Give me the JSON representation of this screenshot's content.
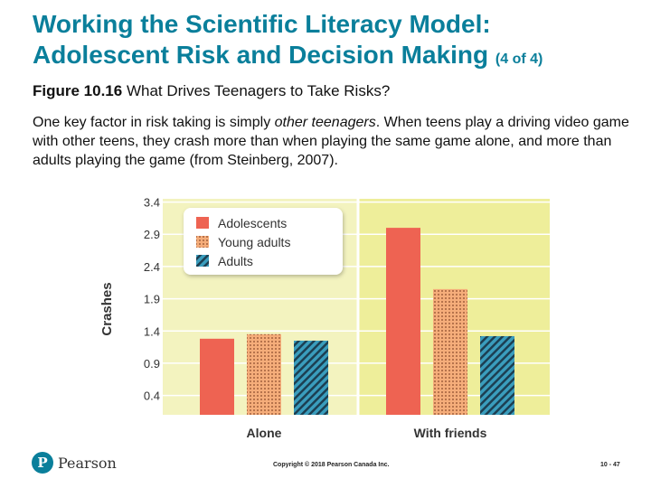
{
  "slide": {
    "title_line1": "Working the Scientific Literacy Model:",
    "title_line2": "Adolescent Risk and Decision Making",
    "title_suffix": "(4 of 4)",
    "figure_label": "Figure 10.16",
    "figure_caption": "What Drives Teenagers to Take Risks?",
    "body_pre": "One key factor in risk taking is simply ",
    "body_em": "other teenagers",
    "body_post": ". When teens play a driving video game with other teens, they crash more than when playing the same game alone, and more than adults playing the game (from Steinberg, 2007).",
    "brand": "Pearson",
    "logo_letter": "P",
    "copyright": "Copyright © 2018 Pearson Canada Inc.",
    "page_number": "10 - 47"
  },
  "chart_data": {
    "type": "bar",
    "categories": [
      "Alone",
      "With friends"
    ],
    "series": [
      {
        "name": "Adolescents",
        "values": [
          1.28,
          3.0
        ],
        "color": "#ee6352",
        "pattern": "solid"
      },
      {
        "name": "Young adults",
        "values": [
          1.35,
          2.05
        ],
        "color": "#f5ad7a",
        "pattern": "dots"
      },
      {
        "name": "Adults",
        "values": [
          1.25,
          1.32
        ],
        "color": "#3a9dbd",
        "pattern": "stripes"
      }
    ],
    "ylabel": "Crashes",
    "xlabel": "",
    "yticks": [
      0.4,
      0.9,
      1.4,
      1.9,
      2.4,
      2.9,
      3.4
    ],
    "ylim": [
      0.1,
      3.45
    ],
    "grid": true,
    "legend_position": "top-left",
    "background_colors": [
      "#f3f3bf",
      "#eeee9a"
    ]
  }
}
